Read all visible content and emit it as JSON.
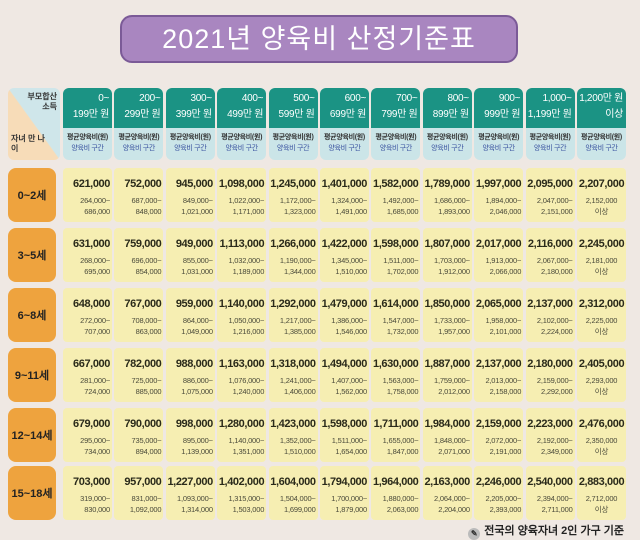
{
  "title": "2021년 양육비 산정기준표",
  "corner": {
    "income_label": "부모합산 소득",
    "age_label": "자녀 만 나이"
  },
  "sub_labels": {
    "avg": "평균양육비(원)",
    "range": "양육비 구간"
  },
  "columns": [
    [
      "0~",
      "199만 원"
    ],
    [
      "200~",
      "299만 원"
    ],
    [
      "300~",
      "399만 원"
    ],
    [
      "400~",
      "499만 원"
    ],
    [
      "500~",
      "599만 원"
    ],
    [
      "600~",
      "699만 원"
    ],
    [
      "700~",
      "799만 원"
    ],
    [
      "800~",
      "899만 원"
    ],
    [
      "900~",
      "999만 원"
    ],
    [
      "1,000~",
      "1,199만 원"
    ],
    [
      "1,200만 원",
      "이상"
    ]
  ],
  "rows": [
    {
      "age": "0~2세",
      "avg": [
        "621,000",
        "752,000",
        "945,000",
        "1,098,000",
        "1,245,000",
        "1,401,000",
        "1,582,000",
        "1,789,000",
        "1,997,000",
        "2,095,000",
        "2,207,000"
      ],
      "range": [
        [
          "264,000~",
          "686,000"
        ],
        [
          "687,000~",
          "848,000"
        ],
        [
          "849,000~",
          "1,021,000"
        ],
        [
          "1,022,000~",
          "1,171,000"
        ],
        [
          "1,172,000~",
          "1,323,000"
        ],
        [
          "1,324,000~",
          "1,491,000"
        ],
        [
          "1,492,000~",
          "1,685,000"
        ],
        [
          "1,686,000~",
          "1,893,000"
        ],
        [
          "1,894,000~",
          "2,046,000"
        ],
        [
          "2,047,000~",
          "2,151,000"
        ],
        [
          "2,152,000",
          "이상"
        ]
      ]
    },
    {
      "age": "3~5세",
      "avg": [
        "631,000",
        "759,000",
        "949,000",
        "1,113,000",
        "1,266,000",
        "1,422,000",
        "1,598,000",
        "1,807,000",
        "2,017,000",
        "2,116,000",
        "2,245,000"
      ],
      "range": [
        [
          "268,000~",
          "695,000"
        ],
        [
          "696,000~",
          "854,000"
        ],
        [
          "855,000~",
          "1,031,000"
        ],
        [
          "1,032,000~",
          "1,189,000"
        ],
        [
          "1,190,000~",
          "1,344,000"
        ],
        [
          "1,345,000~",
          "1,510,000"
        ],
        [
          "1,511,000~",
          "1,702,000"
        ],
        [
          "1,703,000~",
          "1,912,000"
        ],
        [
          "1,913,000~",
          "2,066,000"
        ],
        [
          "2,067,000~",
          "2,180,000"
        ],
        [
          "2,181,000",
          "이상"
        ]
      ]
    },
    {
      "age": "6~8세",
      "avg": [
        "648,000",
        "767,000",
        "959,000",
        "1,140,000",
        "1,292,000",
        "1,479,000",
        "1,614,000",
        "1,850,000",
        "2,065,000",
        "2,137,000",
        "2,312,000"
      ],
      "range": [
        [
          "272,000~",
          "707,000"
        ],
        [
          "708,000~",
          "863,000"
        ],
        [
          "864,000~",
          "1,049,000"
        ],
        [
          "1,050,000~",
          "1,216,000"
        ],
        [
          "1,217,000~",
          "1,385,000"
        ],
        [
          "1,386,000~",
          "1,546,000"
        ],
        [
          "1,547,000~",
          "1,732,000"
        ],
        [
          "1,733,000~",
          "1,957,000"
        ],
        [
          "1,958,000~",
          "2,101,000"
        ],
        [
          "2,102,000~",
          "2,224,000"
        ],
        [
          "2,225,000",
          "이상"
        ]
      ]
    },
    {
      "age": "9~11세",
      "avg": [
        "667,000",
        "782,000",
        "988,000",
        "1,163,000",
        "1,318,000",
        "1,494,000",
        "1,630,000",
        "1,887,000",
        "2,137,000",
        "2,180,000",
        "2,405,000"
      ],
      "range": [
        [
          "281,000~",
          "724,000"
        ],
        [
          "725,000~",
          "885,000"
        ],
        [
          "886,000~",
          "1,075,000"
        ],
        [
          "1,076,000~",
          "1,240,000"
        ],
        [
          "1,241,000~",
          "1,406,000"
        ],
        [
          "1,407,000~",
          "1,562,000"
        ],
        [
          "1,563,000~",
          "1,758,000"
        ],
        [
          "1,759,000~",
          "2,012,000"
        ],
        [
          "2,013,000~",
          "2,158,000"
        ],
        [
          "2,159,000~",
          "2,292,000"
        ],
        [
          "2,293,000",
          "이상"
        ]
      ]
    },
    {
      "age": "12~14세",
      "avg": [
        "679,000",
        "790,000",
        "998,000",
        "1,280,000",
        "1,423,000",
        "1,598,000",
        "1,711,000",
        "1,984,000",
        "2,159,000",
        "2,223,000",
        "2,476,000"
      ],
      "range": [
        [
          "295,000~",
          "734,000"
        ],
        [
          "735,000~",
          "894,000"
        ],
        [
          "895,000~",
          "1,139,000"
        ],
        [
          "1,140,000~",
          "1,351,000"
        ],
        [
          "1,352,000~",
          "1,510,000"
        ],
        [
          "1,511,000~",
          "1,654,000"
        ],
        [
          "1,655,000~",
          "1,847,000"
        ],
        [
          "1,848,000~",
          "2,071,000"
        ],
        [
          "2,072,000~",
          "2,191,000"
        ],
        [
          "2,192,000~",
          "2,349,000"
        ],
        [
          "2,350,000",
          "이상"
        ]
      ]
    },
    {
      "age": "15~18세",
      "avg": [
        "703,000",
        "957,000",
        "1,227,000",
        "1,402,000",
        "1,604,000",
        "1,794,000",
        "1,964,000",
        "2,163,000",
        "2,246,000",
        "2,540,000",
        "2,883,000"
      ],
      "range": [
        [
          "319,000~",
          "830,000"
        ],
        [
          "831,000~",
          "1,092,000"
        ],
        [
          "1,093,000~",
          "1,314,000"
        ],
        [
          "1,315,000~",
          "1,503,000"
        ],
        [
          "1,504,000~",
          "1,699,000"
        ],
        [
          "1,700,000~",
          "1,879,000"
        ],
        [
          "1,880,000~",
          "2,063,000"
        ],
        [
          "2,064,000~",
          "2,204,000"
        ],
        [
          "2,205,000~",
          "2,393,000"
        ],
        [
          "2,394,000~",
          "2,711,000"
        ],
        [
          "2,712,000",
          "이상"
        ]
      ]
    }
  ],
  "footer": "전국의 양육자녀 2인 가구 기준",
  "colors": {
    "title_bg": "#a986c0",
    "header_teal": "#1b9384",
    "subheader": "#cbe5e8",
    "cell": "#f6eeb2",
    "age_label": "#eea33e",
    "background": "#efe8e3"
  }
}
